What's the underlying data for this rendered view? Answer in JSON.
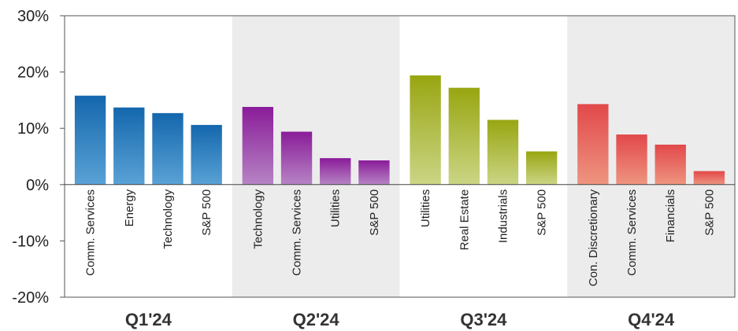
{
  "chart_data": {
    "type": "bar",
    "ylim": [
      -20,
      30
    ],
    "yticks": [
      "30%",
      "20%",
      "10%",
      "0%",
      "-10%",
      "-20%"
    ],
    "ytick_values": [
      30,
      20,
      10,
      0,
      -10,
      -20
    ],
    "groups": [
      {
        "label": "Q1'24",
        "shaded": false,
        "color_top": "#1467ad",
        "color_bottom": "#5aa2d6",
        "categories": [
          "Comm. Services",
          "Energy",
          "Technology",
          "S&P 500"
        ],
        "values": [
          15.8,
          13.7,
          12.7,
          10.6
        ]
      },
      {
        "label": "Q2'24",
        "shaded": true,
        "color_top": "#8a1c99",
        "color_bottom": "#b684c4",
        "categories": [
          "Technology",
          "Comm. Services",
          "Utilities",
          "S&P 500"
        ],
        "values": [
          13.8,
          9.4,
          4.7,
          4.3
        ]
      },
      {
        "label": "Q3'24",
        "shaded": false,
        "color_top": "#98a611",
        "color_bottom": "#cbd585",
        "categories": [
          "Utilities",
          "Real Estate",
          "Industrials",
          "S&P 500"
        ],
        "values": [
          19.4,
          17.2,
          11.5,
          5.9
        ]
      },
      {
        "label": "Q4'24",
        "shaded": true,
        "color_top": "#e2484a",
        "color_bottom": "#ee9580",
        "categories": [
          "Con. Discretionary",
          "Comm. Services",
          "Financials",
          "S&P 500"
        ],
        "values": [
          14.3,
          8.9,
          7.1,
          2.4
        ]
      }
    ],
    "grid": false,
    "legend": "none"
  }
}
